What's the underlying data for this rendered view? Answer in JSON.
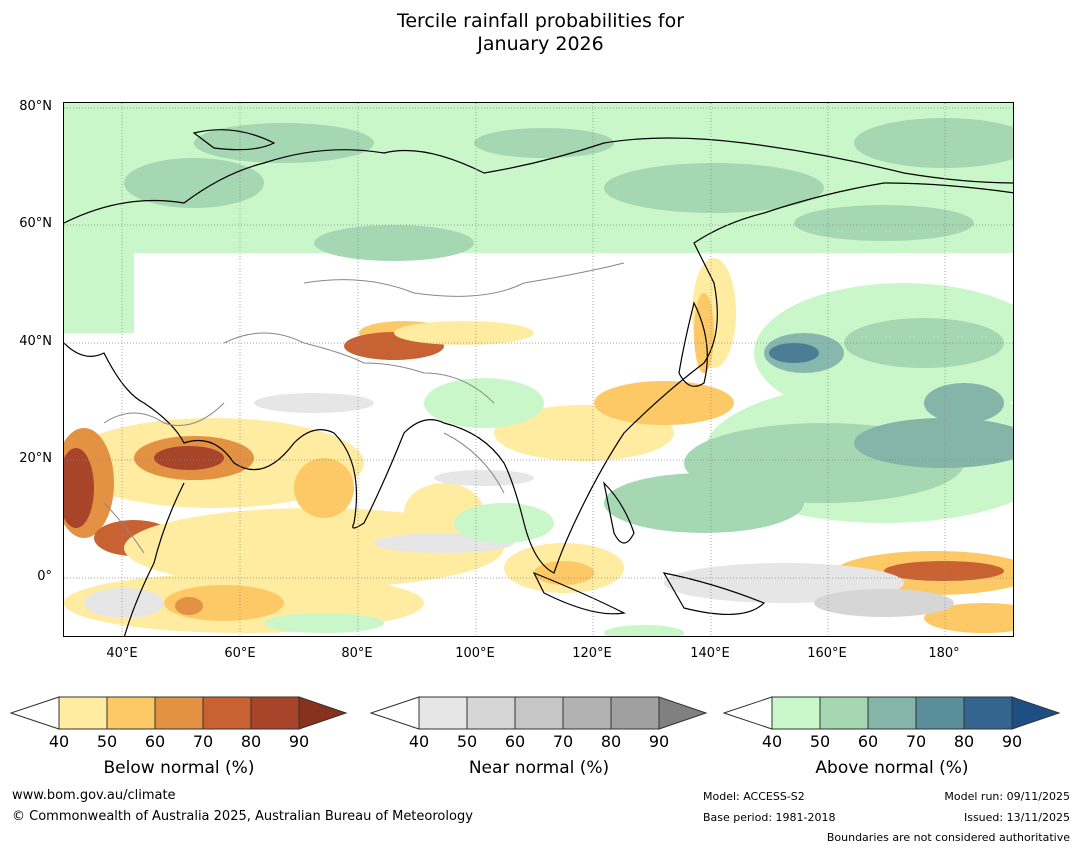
{
  "title": {
    "line1": "Tercile rainfall probabilities for",
    "line2": "January 2026"
  },
  "map": {
    "lat_labels": [
      "80°N",
      "60°N",
      "40°N",
      "20°N",
      "0°"
    ],
    "lon_labels": [
      "40°E",
      "60°E",
      "80°E",
      "100°E",
      "120°E",
      "140°E",
      "160°E",
      "180°"
    ],
    "lat_range": [
      -10,
      81
    ],
    "lon_range": [
      30,
      192
    ]
  },
  "colorbars": [
    {
      "label": "Below normal (%)",
      "ticks": [
        "40",
        "50",
        "60",
        "70",
        "80",
        "90"
      ],
      "colors": [
        "#ffeca0",
        "#fdc966",
        "#e39143",
        "#c86232",
        "#a8442a"
      ],
      "extend_color": "#86321f"
    },
    {
      "label": "Near normal (%)",
      "ticks": [
        "40",
        "50",
        "60",
        "70",
        "80",
        "90"
      ],
      "colors": [
        "#e6e6e6",
        "#d6d6d6",
        "#c6c6c6",
        "#b2b2b2",
        "#a0a0a0"
      ],
      "extend_color": "#808080"
    },
    {
      "label": "Above normal (%)",
      "ticks": [
        "40",
        "50",
        "60",
        "70",
        "80",
        "90"
      ],
      "colors": [
        "#c9f7c9",
        "#a5d7b2",
        "#84b5a8",
        "#5b8e9b",
        "#33658f"
      ],
      "extend_color": "#1d4f85"
    }
  ],
  "footer": {
    "url": "www.bom.gov.au/climate",
    "copyright": "© Commonwealth of Australia 2025, Australian Bureau of Meteorology",
    "model": "Model: ACCESS-S2",
    "base_period": "Base period: 1981-2018",
    "model_run": "Model run: 09/11/2025",
    "issued": "Issued: 13/11/2025",
    "disclaimer": "Boundaries are not considered authoritative"
  }
}
